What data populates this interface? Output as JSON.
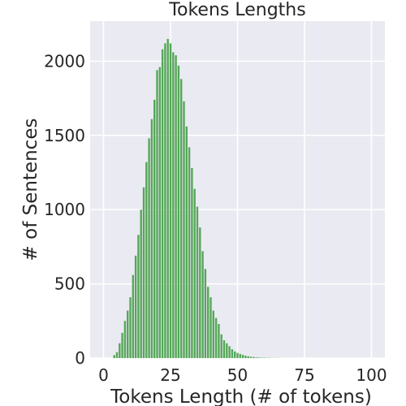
{
  "chart_data": {
    "type": "bar",
    "title": "Tokens Lengths",
    "xlabel": "Tokens Length (# of tokens)",
    "ylabel": "# of Sentences",
    "xlim": [
      -5,
      105
    ],
    "ylim": [
      0,
      2270
    ],
    "xticks": [
      0,
      25,
      50,
      75,
      100
    ],
    "yticks": [
      0,
      500,
      1000,
      1500,
      2000
    ],
    "grid": true,
    "colors": {
      "bar": "#55a758",
      "plot_background": "#eaeaf2",
      "grid": "#ffffff"
    },
    "x": [
      4,
      5,
      6,
      7,
      8,
      9,
      10,
      11,
      12,
      13,
      14,
      15,
      16,
      17,
      18,
      19,
      20,
      21,
      22,
      23,
      24,
      25,
      26,
      27,
      28,
      29,
      30,
      31,
      32,
      33,
      34,
      35,
      36,
      37,
      38,
      39,
      40,
      41,
      42,
      43,
      44,
      45,
      46,
      47,
      48,
      49,
      50,
      51,
      52,
      53,
      54,
      55,
      56,
      57,
      58,
      59,
      60,
      61,
      62,
      63,
      64,
      65
    ],
    "values": [
      20,
      40,
      100,
      170,
      250,
      320,
      410,
      560,
      690,
      830,
      1000,
      1150,
      1320,
      1480,
      1610,
      1740,
      1940,
      1960,
      2080,
      2120,
      2150,
      2120,
      2060,
      2040,
      1970,
      1880,
      1730,
      1560,
      1420,
      1280,
      1140,
      1020,
      880,
      720,
      600,
      480,
      410,
      320,
      270,
      230,
      160,
      120,
      100,
      80,
      60,
      45,
      35,
      28,
      22,
      16,
      12,
      9,
      7,
      5,
      4,
      3,
      3,
      2,
      2,
      1,
      1,
      1
    ]
  }
}
